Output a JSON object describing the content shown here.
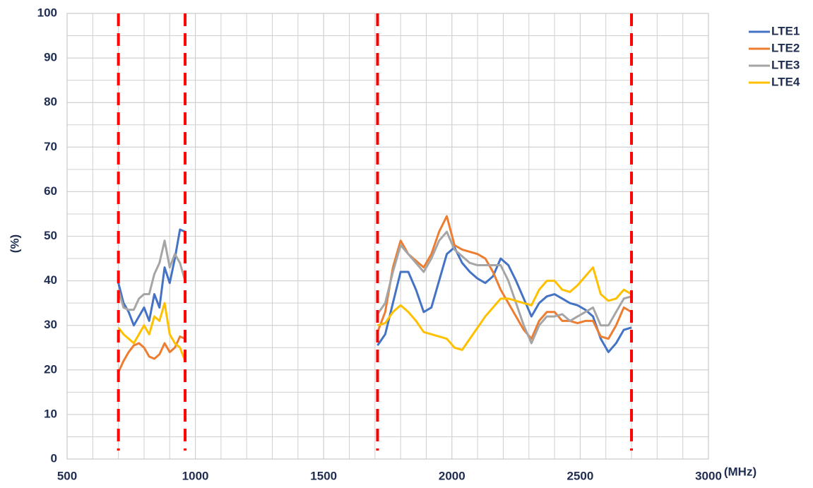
{
  "chart_data": {
    "type": "line",
    "x_label": "(MHz)",
    "y_label": "(%)",
    "x": [
      700,
      720,
      740,
      760,
      780,
      800,
      820,
      840,
      860,
      880,
      900,
      920,
      940,
      960,
      1300,
      1710,
      1740,
      1770,
      1800,
      1830,
      1860,
      1890,
      1920,
      1950,
      1980,
      2010,
      2040,
      2070,
      2100,
      2130,
      2160,
      2190,
      2220,
      2250,
      2280,
      2310,
      2340,
      2370,
      2400,
      2430,
      2460,
      2490,
      2520,
      2550,
      2580,
      2610,
      2640,
      2670,
      2700
    ],
    "series": [
      {
        "name": "LTE1",
        "color": "#4472c4",
        "values": [
          39.5,
          35,
          33,
          30,
          32,
          34,
          31,
          37,
          34,
          43,
          39.5,
          45,
          51.5,
          51,
          null,
          25.5,
          28,
          35,
          42,
          42,
          38,
          33,
          34,
          40,
          46,
          47.5,
          44,
          42,
          40.5,
          39.5,
          41,
          45,
          43.5,
          40,
          36,
          32,
          35,
          36.5,
          37,
          36,
          35,
          34.5,
          33.5,
          32,
          27,
          24,
          26,
          29,
          29.5
        ]
      },
      {
        "name": "LTE2",
        "color": "#ed7d31",
        "values": [
          19.5,
          22,
          24,
          25.5,
          26,
          25,
          23,
          22.5,
          23.5,
          26,
          24,
          25,
          27.5,
          27,
          null,
          28.5,
          33,
          43,
          49,
          46,
          44.5,
          43,
          46,
          51,
          54.5,
          48,
          47,
          46.5,
          46,
          45,
          42,
          38,
          35,
          32,
          29,
          27,
          31,
          33,
          33,
          31,
          31,
          30.5,
          31,
          31,
          27.5,
          27,
          30,
          34,
          33
        ]
      },
      {
        "name": "LTE3",
        "color": "#a5a5a5",
        "values": [
          38,
          34,
          33.5,
          33.5,
          36,
          37,
          37,
          41.5,
          44,
          49,
          43,
          46,
          44,
          40,
          null,
          32.5,
          35,
          42,
          48,
          46,
          44,
          42,
          45,
          49,
          51,
          47,
          45.5,
          44,
          43.5,
          43.5,
          43.5,
          43.5,
          40,
          35,
          30,
          26,
          30,
          32,
          32,
          32.5,
          31,
          32,
          33,
          34,
          30,
          30,
          33,
          36,
          36.5
        ]
      },
      {
        "name": "LTE4",
        "color": "#ffc000",
        "values": [
          29.5,
          28,
          27,
          26,
          28,
          30,
          28,
          32,
          31,
          35,
          28,
          26,
          25,
          22,
          null,
          30,
          30.5,
          33,
          34.5,
          33,
          31,
          28.5,
          28,
          27.5,
          27,
          25,
          24.5,
          27,
          29.5,
          32,
          34,
          36,
          36,
          35.5,
          35,
          34.5,
          38,
          40,
          40,
          38,
          37.5,
          39,
          41,
          43,
          37,
          35.5,
          36,
          38,
          37
        ]
      }
    ],
    "xlim": [
      500,
      3000
    ],
    "xticks": [
      500,
      1000,
      1500,
      2000,
      2500,
      3000
    ],
    "ylim": [
      0,
      100
    ],
    "yticks": [
      0,
      10,
      20,
      30,
      40,
      50,
      60,
      70,
      80,
      90,
      100
    ],
    "grid": true,
    "x_grid_step": 100,
    "y_grid_step": 5,
    "vlines": [
      700,
      960,
      1710,
      2700
    ],
    "vline_color": "#ff0000",
    "legend": "right"
  }
}
